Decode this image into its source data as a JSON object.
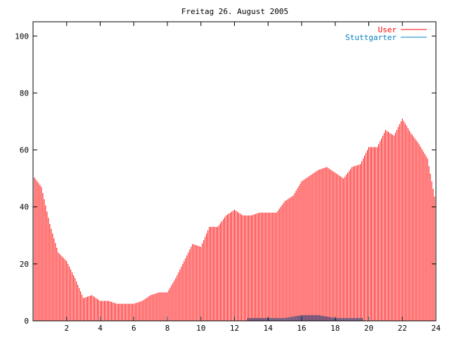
{
  "chart_data": {
    "type": "bar",
    "title": "Freitag 26. August 2005",
    "xlabel": "",
    "ylabel": "",
    "xlim": [
      0,
      24
    ],
    "ylim": [
      0,
      105
    ],
    "x_ticks": [
      2,
      4,
      6,
      8,
      10,
      12,
      14,
      16,
      18,
      20,
      22,
      24
    ],
    "y_ticks": [
      0,
      20,
      40,
      60,
      80,
      100
    ],
    "grid": false,
    "legend_position": "top-right",
    "series": [
      {
        "name": "User",
        "color": "#ff0000",
        "style": "impulses",
        "points": [
          [
            0.0,
            51
          ],
          [
            0.5,
            47
          ],
          [
            1.0,
            34
          ],
          [
            1.5,
            24
          ],
          [
            2.0,
            21
          ],
          [
            2.5,
            15
          ],
          [
            3.0,
            8
          ],
          [
            3.5,
            9
          ],
          [
            4.0,
            7
          ],
          [
            4.5,
            7
          ],
          [
            5.0,
            6
          ],
          [
            5.5,
            6
          ],
          [
            6.0,
            6
          ],
          [
            6.5,
            7
          ],
          [
            7.0,
            9
          ],
          [
            7.5,
            10
          ],
          [
            8.0,
            10
          ],
          [
            8.5,
            15
          ],
          [
            9.0,
            21
          ],
          [
            9.5,
            27
          ],
          [
            10.0,
            26
          ],
          [
            10.5,
            33
          ],
          [
            11.0,
            33
          ],
          [
            11.5,
            37
          ],
          [
            12.0,
            39
          ],
          [
            12.5,
            37
          ],
          [
            13.0,
            37
          ],
          [
            13.5,
            38
          ],
          [
            14.0,
            38
          ],
          [
            14.5,
            38
          ],
          [
            15.0,
            42
          ],
          [
            15.5,
            44
          ],
          [
            16.0,
            49
          ],
          [
            16.5,
            51
          ],
          [
            17.0,
            53
          ],
          [
            17.5,
            54
          ],
          [
            18.0,
            52
          ],
          [
            18.5,
            50
          ],
          [
            19.0,
            54
          ],
          [
            19.5,
            55
          ],
          [
            20.0,
            61
          ],
          [
            20.5,
            61
          ],
          [
            21.0,
            67
          ],
          [
            21.5,
            65
          ],
          [
            22.0,
            71
          ],
          [
            22.5,
            66
          ],
          [
            23.0,
            62
          ],
          [
            23.5,
            57
          ],
          [
            24.0,
            41
          ]
        ]
      },
      {
        "name": "Stuttgarter",
        "color": "#0080c0",
        "style": "impulses",
        "points": [
          [
            12.8,
            1
          ],
          [
            14.0,
            1
          ],
          [
            15.0,
            1
          ],
          [
            16.0,
            2
          ],
          [
            17.0,
            2
          ],
          [
            18.0,
            1
          ],
          [
            19.0,
            1
          ],
          [
            19.7,
            1
          ]
        ]
      }
    ]
  }
}
